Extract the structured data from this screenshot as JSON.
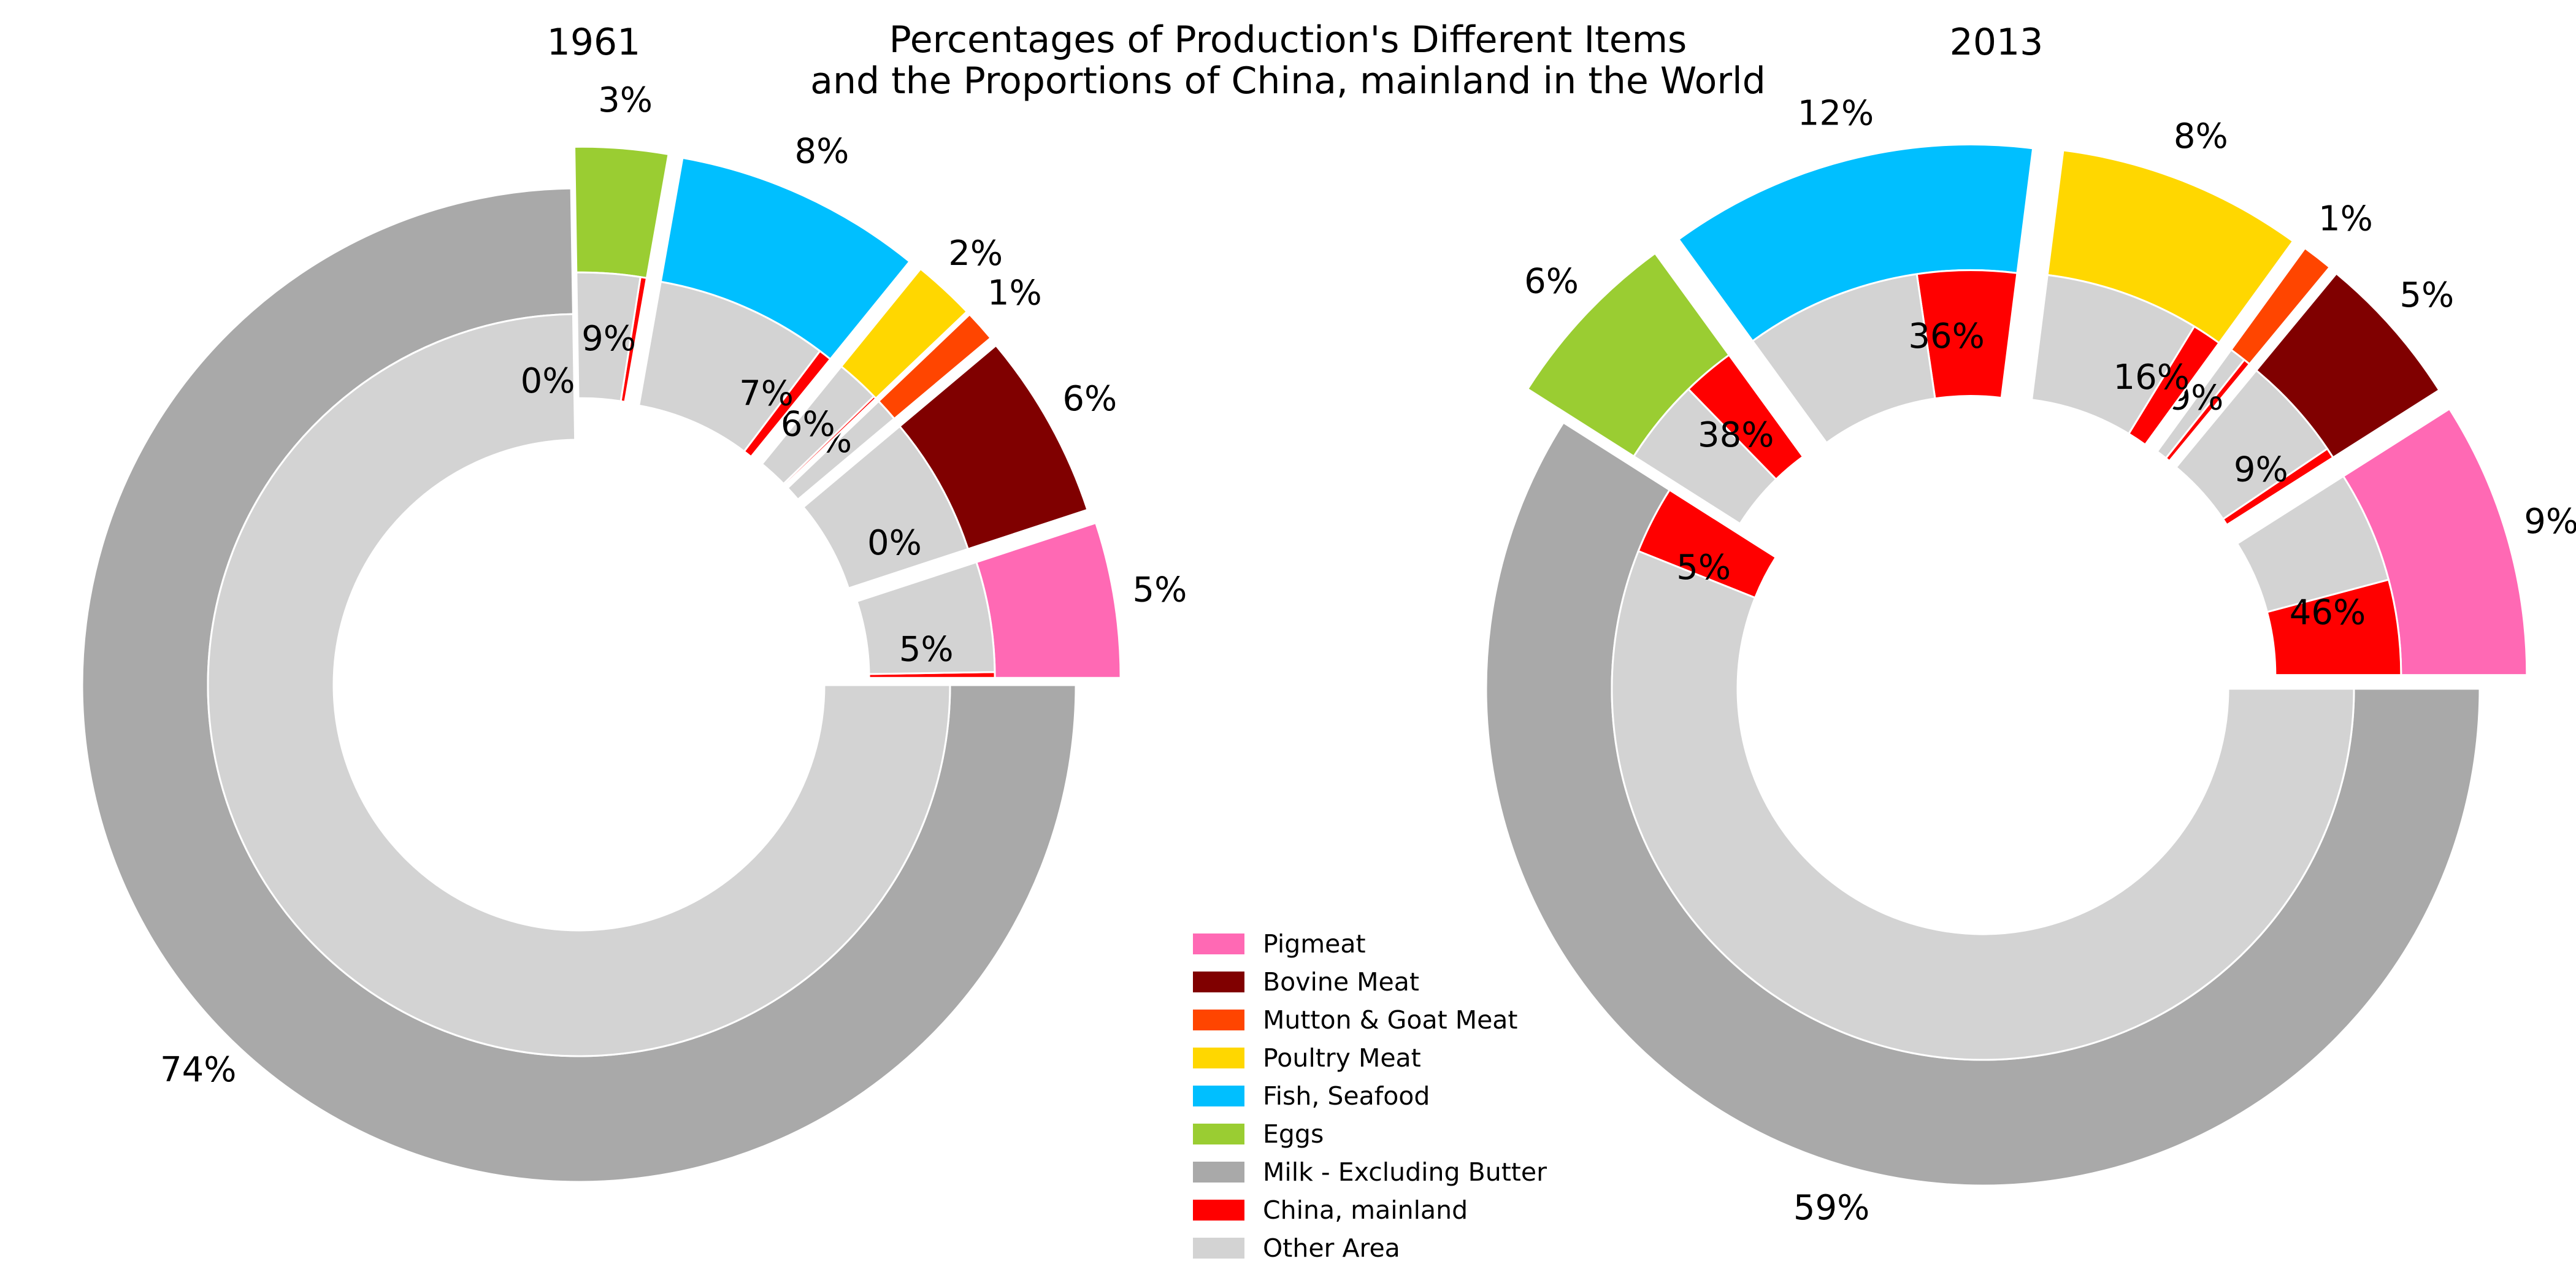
{
  "chart_data": [
    {
      "type": "donut",
      "title": "1961",
      "outer_ring": {
        "categories": [
          "Pigmeat",
          "Bovine Meat",
          "Mutton & Goat Meat",
          "Poultry Meat",
          "Fish, Seafood",
          "Eggs",
          "Milk - Excluding Butter"
        ],
        "values": [
          5,
          6,
          1,
          2,
          8,
          3,
          74
        ],
        "labels": [
          "5%",
          "6%",
          "1%",
          "2%",
          "8%",
          "3%",
          "74%"
        ]
      },
      "inner_ring": {
        "china_share_labels": [
          "5%",
          "0%",
          "1%",
          "6%",
          "7%",
          "9%",
          "0%"
        ],
        "china_share_values": [
          5,
          0,
          1,
          6,
          7,
          9,
          0
        ]
      }
    },
    {
      "type": "donut",
      "title": "2013",
      "outer_ring": {
        "categories": [
          "Pigmeat",
          "Bovine Meat",
          "Mutton & Goat Meat",
          "Poultry Meat",
          "Fish, Seafood",
          "Eggs",
          "Milk - Excluding Butter"
        ],
        "values": [
          9,
          5,
          1,
          8,
          12,
          6,
          59
        ],
        "labels": [
          "9%",
          "5%",
          "1%",
          "8%",
          "12%",
          "6%",
          "59%"
        ]
      },
      "inner_ring": {
        "china_share_labels": [
          "46%",
          "9%",
          "29%",
          "16%",
          "36%",
          "38%",
          "5%"
        ],
        "china_share_values": [
          46,
          9,
          29,
          16,
          36,
          38,
          5
        ]
      }
    }
  ],
  "figure": {
    "title_line1": "Percentages of Production's Different Items",
    "title_line2": "and the Proportions of China, mainland in the World",
    "left_title": "1961",
    "right_title": "2013"
  },
  "legend": {
    "placement": "bottom-center",
    "items": [
      {
        "label": "Pigmeat",
        "color": "#ff69b4"
      },
      {
        "label": "Bovine Meat",
        "color": "#800000"
      },
      {
        "label": "Mutton & Goat Meat",
        "color": "#ff4500"
      },
      {
        "label": "Poultry Meat",
        "color": "#ffd700"
      },
      {
        "label": "Fish, Seafood",
        "color": "#00bfff"
      },
      {
        "label": "Eggs",
        "color": "#9acd32"
      },
      {
        "label": "Milk - Excluding Butter",
        "color": "#a9a9a9"
      },
      {
        "label": "China, mainland",
        "color": "#ff0000"
      },
      {
        "label": "Other Area",
        "color": "#d3d3d3"
      }
    ]
  },
  "colors": {
    "items": [
      "#ff69b4",
      "#800000",
      "#ff4500",
      "#ffd700",
      "#00bfff",
      "#9acd32",
      "#a9a9a9"
    ],
    "china": "#ff0000",
    "other": "#d3d3d3"
  }
}
